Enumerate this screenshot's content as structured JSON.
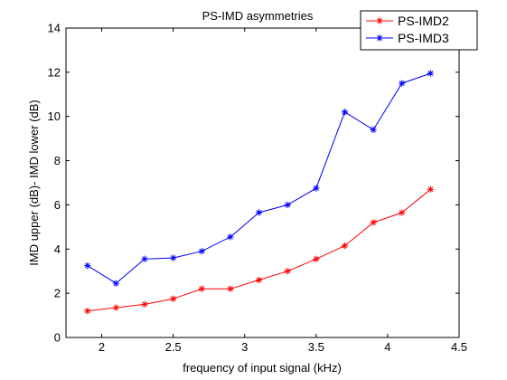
{
  "chart_data": {
    "type": "line",
    "title": "PS-IMD asymmetries",
    "xlabel": "frequency of input signal (kHz)",
    "ylabel": "IMD upper (dB)- IMD lower (dB)",
    "xlim": [
      1.75,
      4.5
    ],
    "ylim": [
      0,
      14
    ],
    "xticks": [
      2,
      2.5,
      3,
      3.5,
      4,
      4.5
    ],
    "xtick_labels": [
      "2",
      "2.5",
      "3",
      "3.5",
      "4",
      "4.5"
    ],
    "yticks": [
      0,
      2,
      4,
      6,
      8,
      10,
      12,
      14
    ],
    "ytick_labels": [
      "0",
      "2",
      "4",
      "6",
      "8",
      "10",
      "12",
      "14"
    ],
    "grid": false,
    "legend_position": "top-right",
    "x": [
      1.9,
      2.1,
      2.3,
      2.5,
      2.7,
      2.9,
      3.1,
      3.3,
      3.5,
      3.7,
      3.9,
      4.1,
      4.3
    ],
    "series": [
      {
        "name": "PS-IMD2",
        "color": "#ff0000",
        "marker": "asterisk",
        "values": [
          1.2,
          1.35,
          1.5,
          1.75,
          2.2,
          2.2,
          2.6,
          3.0,
          3.55,
          4.15,
          5.2,
          5.65,
          6.7
        ]
      },
      {
        "name": "PS-IMD3",
        "color": "#0000ff",
        "marker": "asterisk",
        "values": [
          3.25,
          2.45,
          3.55,
          3.6,
          3.9,
          4.55,
          5.65,
          6.0,
          6.75,
          10.2,
          9.4,
          11.5,
          11.95
        ]
      }
    ]
  }
}
